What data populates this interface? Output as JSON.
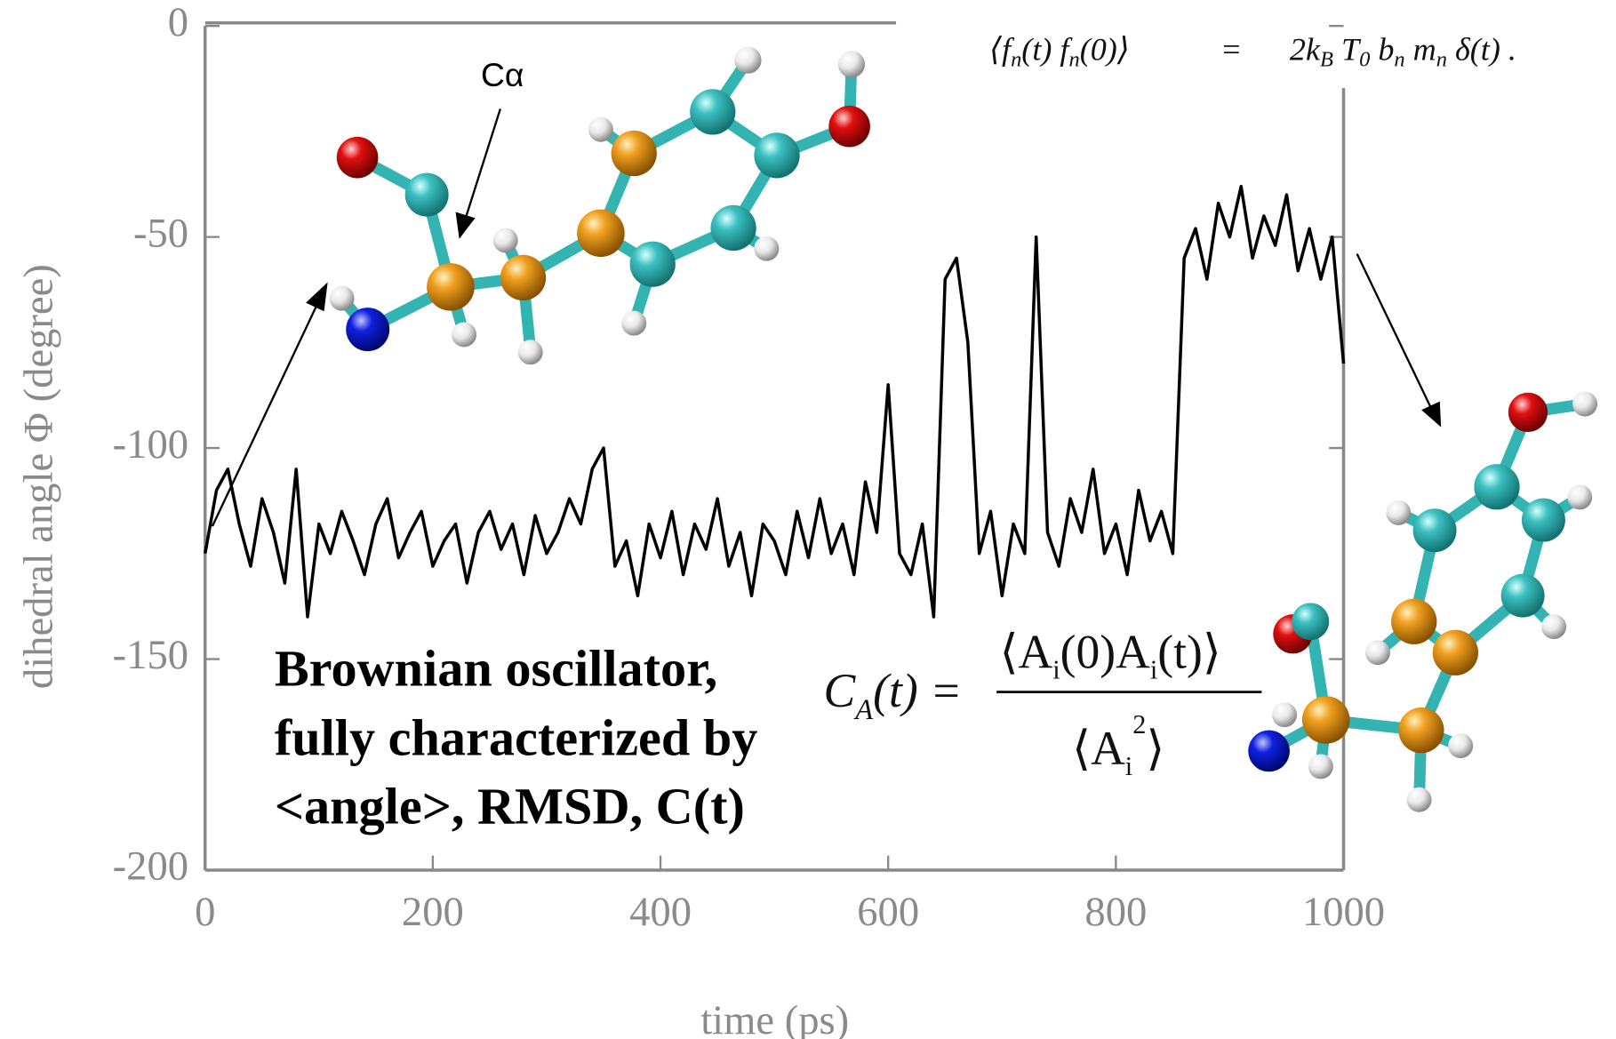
{
  "chart_data": {
    "type": "line",
    "x_label": "time (ps)",
    "y_label": "dihedral angle Φ (degree)",
    "x": [
      0,
      10,
      20,
      30,
      40,
      50,
      60,
      70,
      80,
      90,
      100,
      110,
      120,
      130,
      140,
      150,
      160,
      170,
      180,
      190,
      200,
      210,
      220,
      230,
      240,
      250,
      260,
      270,
      280,
      290,
      300,
      310,
      320,
      330,
      340,
      350,
      360,
      370,
      380,
      390,
      400,
      410,
      420,
      430,
      440,
      450,
      460,
      470,
      480,
      490,
      500,
      510,
      520,
      530,
      540,
      550,
      560,
      570,
      580,
      590,
      600,
      610,
      620,
      630,
      640,
      650,
      660,
      670,
      680,
      690,
      700,
      710,
      720,
      730,
      740,
      750,
      760,
      770,
      780,
      790,
      800,
      810,
      820,
      830,
      840,
      850,
      860,
      870,
      880,
      890,
      900,
      910,
      920,
      930,
      940,
      950,
      960,
      970,
      980,
      990,
      1000
    ],
    "values": [
      -125,
      -110,
      -105,
      -118,
      -128,
      -112,
      -120,
      -132,
      -105,
      -140,
      -118,
      -125,
      -115,
      -122,
      -130,
      -118,
      -112,
      -126,
      -120,
      -115,
      -128,
      -122,
      -118,
      -132,
      -120,
      -115,
      -124,
      -118,
      -130,
      -116,
      -125,
      -120,
      -112,
      -118,
      -105,
      -100,
      -128,
      -122,
      -135,
      -118,
      -126,
      -115,
      -130,
      -118,
      -124,
      -112,
      -128,
      -120,
      -135,
      -118,
      -122,
      -130,
      -115,
      -126,
      -112,
      -125,
      -118,
      -130,
      -108,
      -120,
      -85,
      -125,
      -130,
      -118,
      -140,
      -60,
      -55,
      -75,
      -125,
      -115,
      -135,
      -118,
      -125,
      -50,
      -120,
      -128,
      -112,
      -120,
      -105,
      -125,
      -118,
      -130,
      -110,
      -122,
      -115,
      -125,
      -55,
      -48,
      -60,
      -42,
      -50,
      -38,
      -55,
      -45,
      -52,
      -40,
      -58,
      -48,
      -60,
      -50,
      -80
    ],
    "color": "#000000",
    "xlim": [
      0,
      1000
    ],
    "ylim": [
      -200,
      0
    ],
    "xticks": [
      0,
      200,
      400,
      600,
      800,
      1000
    ],
    "yticks": [
      0,
      -50,
      -100,
      -150,
      -200
    ],
    "annotations": {
      "c_alpha": "Cα",
      "caption": [
        "Brownian oscillator,",
        "fully characterized by",
        "<angle>, RMSD, C(t)"
      ],
      "noise_eq": [
        "⟨f",
        "n",
        "(t) f",
        "n",
        "(0)⟩",
        "=",
        "2k",
        "B",
        " T",
        "0",
        " b",
        "n",
        " m",
        "n",
        " δ(t) ."
      ],
      "corr_eq": {
        "lhs": [
          "C",
          "A",
          "(t) ="
        ],
        "num": [
          "⟨A",
          "i",
          "(0)A",
          "i",
          "(t)⟩"
        ],
        "den": [
          "⟨A",
          "i",
          "2",
          "⟩"
        ]
      }
    }
  }
}
